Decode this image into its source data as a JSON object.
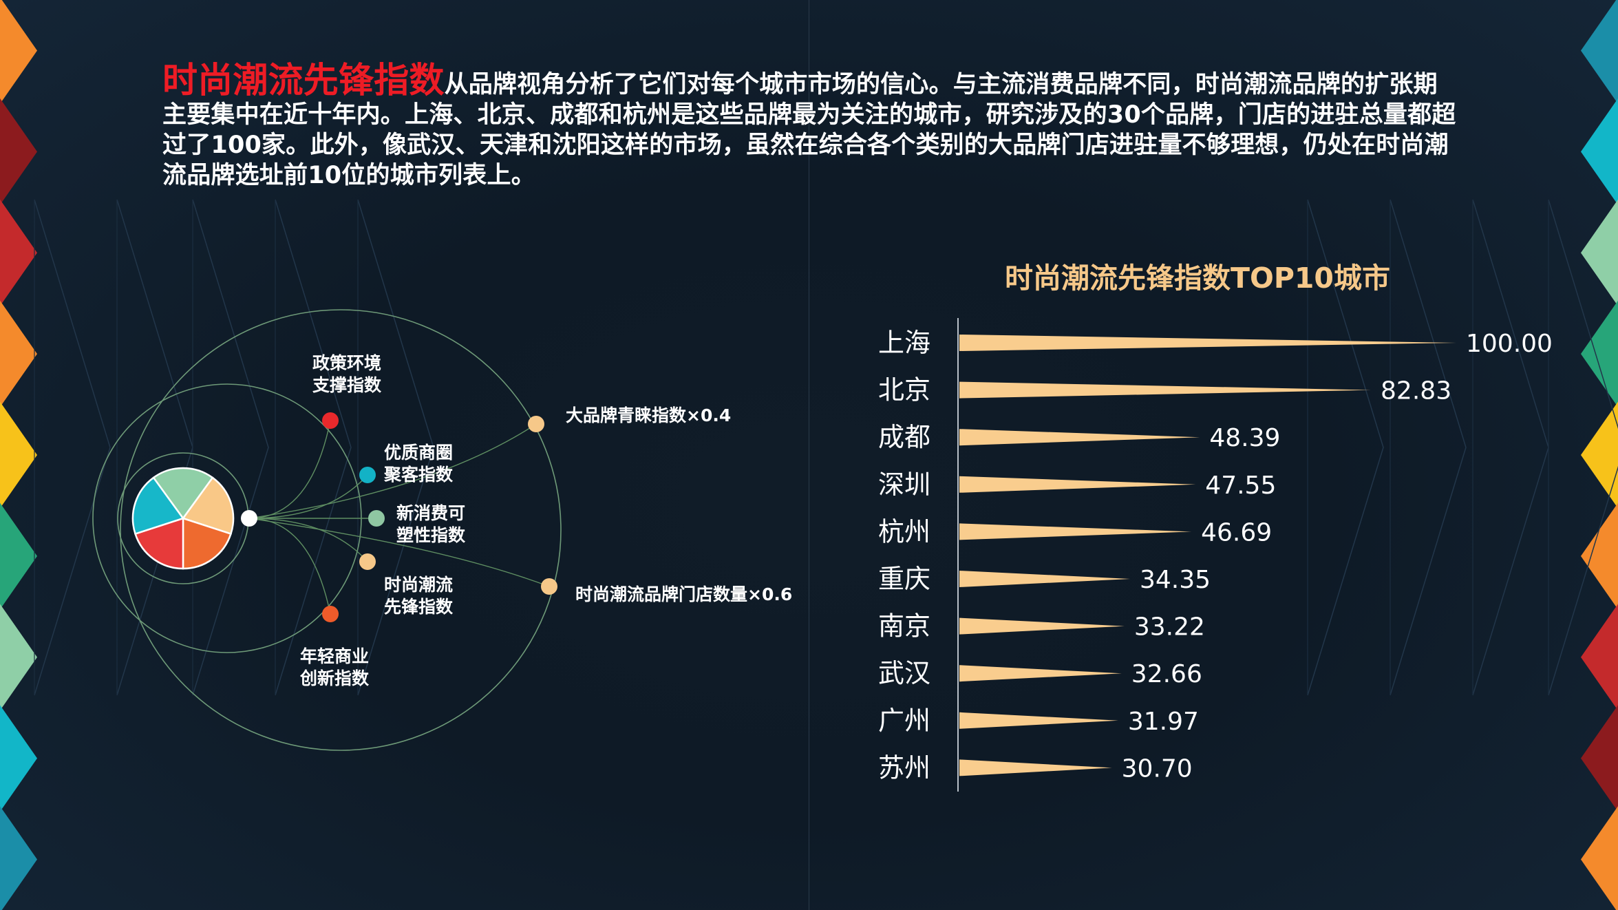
{
  "intro": {
    "highlight": "时尚潮流先锋指数",
    "body": "从品牌视角分析了它们对每个城市市场的信心。与主流消费品牌不同，时尚潮流品牌的扩张期主要集中在近十年内。上海、北京、成都和杭州是这些品牌最为关注的城市，研究涉及的30个品牌，门店的进驻总量都超过了100家。此外，像武汉、天津和沈阳这样的市场，虽然在综合各个类别的大品牌门店进驻量不够理想，仍处在时尚潮流品牌选址前10位的城市列表上。"
  },
  "diagram": {
    "pie_colors": [
      "#8fcfa7",
      "#f9c887",
      "#ee6a2f",
      "#e73a3a",
      "#17b7c9"
    ],
    "inner_nodes": [
      {
        "label": "政策环境\n支撑指数",
        "color": "#e8292c"
      },
      {
        "label": "优质商圈\n聚客指数",
        "color": "#13b2c6"
      },
      {
        "label": "新消费可\n塑性指数",
        "color": "#8fc6a2"
      },
      {
        "label": "时尚潮流\n先锋指数",
        "color": "#f6c889"
      },
      {
        "label": "年轻商业\n创新指数",
        "color": "#ee5b2a"
      }
    ],
    "outer_nodes": [
      {
        "label": "大品牌青睐指数×0.4",
        "color": "#f6c889"
      },
      {
        "label": "时尚潮流品牌门店数量×0.6",
        "color": "#f6c889"
      }
    ]
  },
  "chart_data": {
    "type": "bar",
    "orientation": "horizontal",
    "title": "时尚潮流先锋指数TOP10城市",
    "categories": [
      "上海",
      "北京",
      "成都",
      "深圳",
      "杭州",
      "重庆",
      "南京",
      "武汉",
      "广州",
      "苏州"
    ],
    "values": [
      100.0,
      82.83,
      48.39,
      47.55,
      46.69,
      34.35,
      33.22,
      32.66,
      31.97,
      30.7
    ],
    "value_labels": [
      "100.00",
      "82.83",
      "48.39",
      "47.55",
      "46.69",
      "34.35",
      "33.22",
      "32.66",
      "31.97",
      "30.70"
    ],
    "xlim": [
      0,
      100
    ],
    "bar_color": "#f9cd8e",
    "grid": false
  }
}
